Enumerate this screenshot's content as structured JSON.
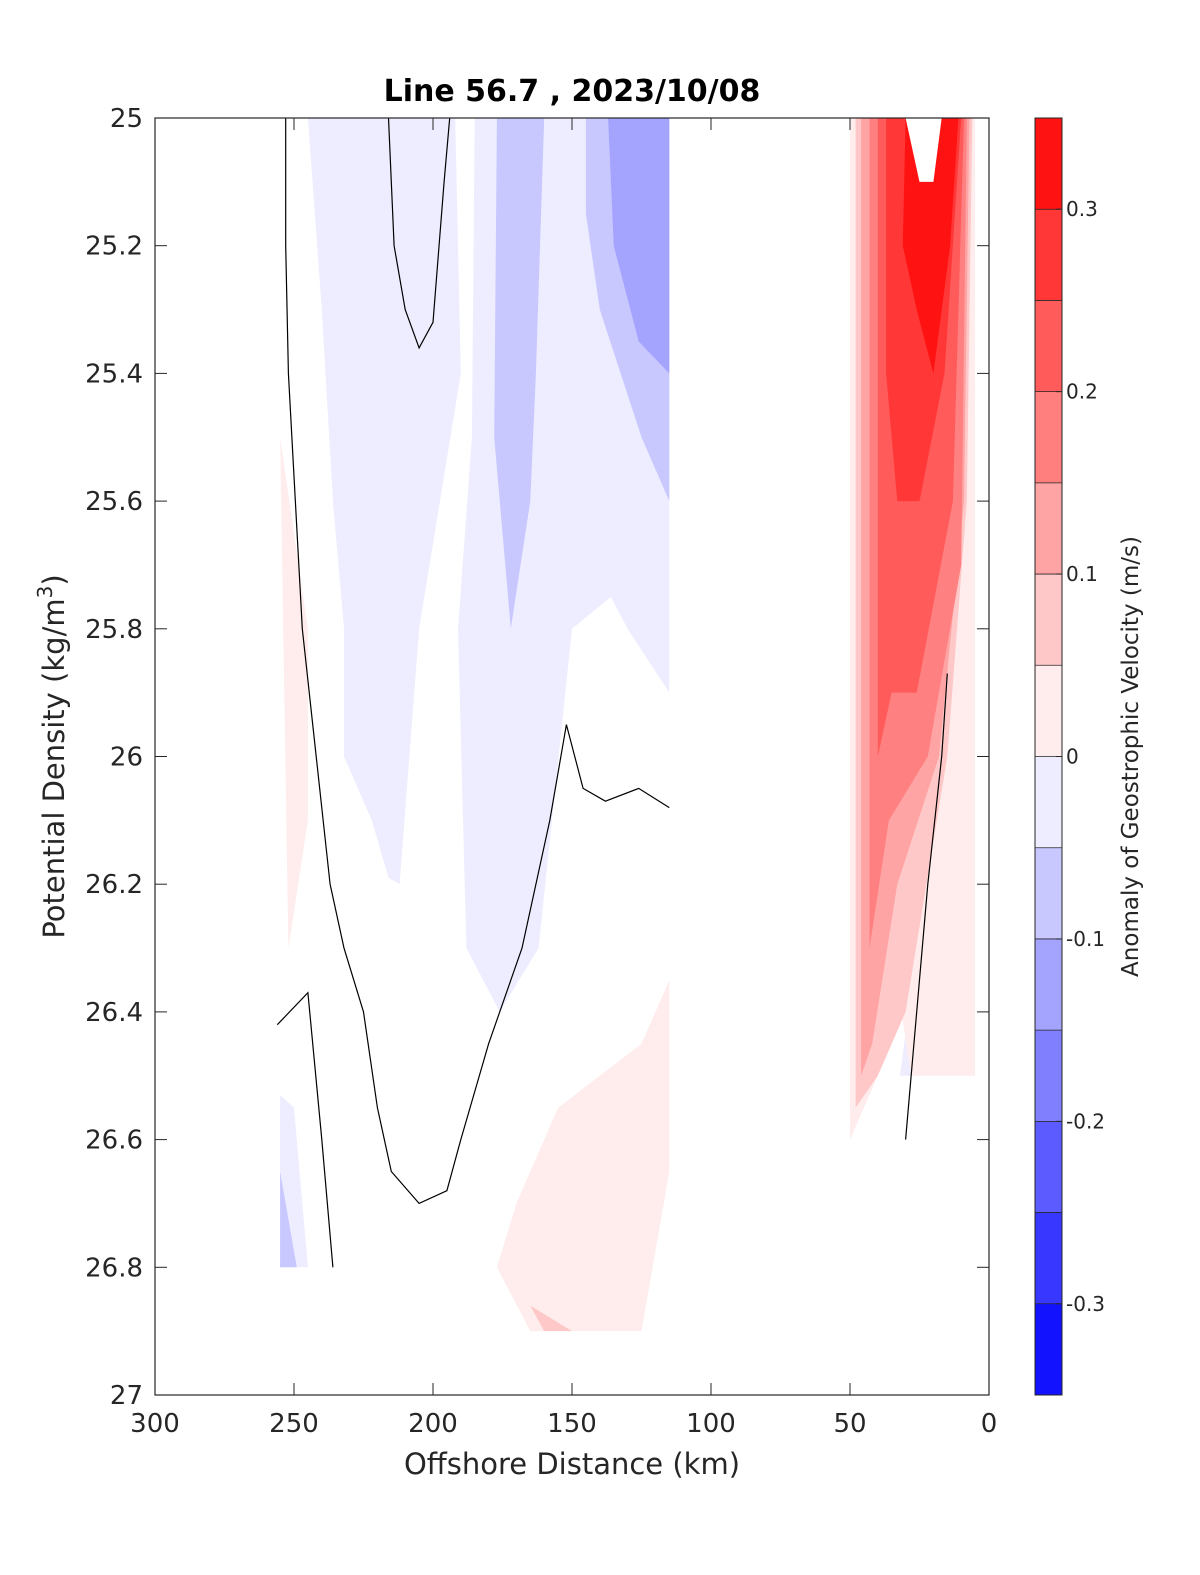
{
  "chart_data": {
    "type": "heatmap",
    "subtype": "filled-contour",
    "title": "Line 56.7 , 2023/10/08",
    "xlabel": "Offshore Distance (km)",
    "ylabel": "Potential Density (kg/m³)",
    "ylabel_base": "Potential Density (kg/m",
    "ylabel_sup": "3",
    "ylabel_end": ")",
    "xlim": [
      300,
      0
    ],
    "x_reversed": true,
    "ylim": [
      27,
      25
    ],
    "y_reversed": true,
    "x_ticks": [
      300,
      250,
      200,
      150,
      100,
      50,
      0
    ],
    "x_tick_labels": [
      "300",
      "250",
      "200",
      "150",
      "100",
      "50",
      "0"
    ],
    "y_ticks": [
      25,
      25.2,
      25.4,
      25.6,
      25.8,
      26,
      26.2,
      26.4,
      26.6,
      26.8,
      27
    ],
    "y_tick_labels": [
      "25",
      "25.2",
      "25.4",
      "25.6",
      "25.8",
      "26",
      "26.2",
      "26.4",
      "26.6",
      "26.8",
      "27"
    ],
    "grid": false,
    "colorbar": {
      "label": "Anomaly of Geostrophic Velocity (m/s)",
      "range": [
        -0.35,
        0.35
      ],
      "step": 0.05,
      "ticks": [
        -0.3,
        -0.2,
        -0.1,
        0,
        0.1,
        0.2,
        0.3
      ],
      "tick_labels": [
        "-0.3",
        "-0.2",
        "-0.1",
        "0",
        "0.1",
        "0.2",
        "0.3"
      ],
      "colormap": "blue-white-red"
    },
    "regions": [
      {
        "name": "offshore-negative-band",
        "level": -0.025,
        "points": [
          [
            245,
            25
          ],
          [
            192,
            25
          ],
          [
            190,
            25.4
          ],
          [
            205,
            25.8
          ],
          [
            212,
            26.2
          ],
          [
            216,
            26.19
          ],
          [
            222,
            26.1
          ],
          [
            232,
            26.0
          ],
          [
            232,
            25.8
          ],
          [
            236,
            25.6
          ],
          [
            240,
            25.3
          ]
        ]
      },
      {
        "name": "mid-negative-band",
        "level": -0.025,
        "points": [
          [
            185,
            25
          ],
          [
            115,
            25
          ],
          [
            115,
            25.9
          ],
          [
            130,
            25.8
          ],
          [
            136,
            25.75
          ],
          [
            150,
            25.8
          ],
          [
            162,
            26.3
          ],
          [
            176,
            26.4
          ],
          [
            188,
            26.3
          ],
          [
            191,
            25.8
          ],
          [
            186,
            25.5
          ]
        ]
      },
      {
        "name": "mid-negative-core",
        "level": -0.075,
        "points": [
          [
            177,
            25
          ],
          [
            160,
            25
          ],
          [
            163,
            25.4
          ],
          [
            165,
            25.6
          ],
          [
            172,
            25.8
          ],
          [
            178,
            25.5
          ]
        ]
      },
      {
        "name": "inshore-negative-patch",
        "level": -0.075,
        "points": [
          [
            145,
            25
          ],
          [
            115,
            25
          ],
          [
            115,
            25.6
          ],
          [
            125,
            25.5
          ],
          [
            140,
            25.3
          ],
          [
            145,
            25.15
          ]
        ]
      },
      {
        "name": "inshore-negative-core",
        "level": -0.125,
        "points": [
          [
            137,
            25
          ],
          [
            115,
            25
          ],
          [
            115,
            25.4
          ],
          [
            126,
            25.35
          ],
          [
            135,
            25.2
          ]
        ]
      },
      {
        "name": "offshore-positive-sliver",
        "level": 0.025,
        "points": [
          [
            255,
            25.5
          ],
          [
            252,
            26.3
          ],
          [
            245,
            26.1
          ],
          [
            245,
            25.8
          ]
        ]
      },
      {
        "name": "deep-positive-patch",
        "level": 0.025,
        "points": [
          [
            115,
            26.35
          ],
          [
            125,
            26.45
          ],
          [
            155,
            26.55
          ],
          [
            170,
            26.7
          ],
          [
            177,
            26.8
          ],
          [
            165,
            26.9
          ],
          [
            125,
            26.9
          ],
          [
            115,
            26.65
          ]
        ]
      },
      {
        "name": "deep-positive-core",
        "level": 0.075,
        "points": [
          [
            165,
            26.86
          ],
          [
            150,
            26.9
          ],
          [
            160,
            26.9
          ]
        ]
      },
      {
        "name": "offshore-deep-negative",
        "level": -0.025,
        "points": [
          [
            255,
            26.53
          ],
          [
            250,
            26.55
          ],
          [
            245,
            26.8
          ],
          [
            255,
            26.8
          ]
        ]
      },
      {
        "name": "offshore-deep-negative-core",
        "level": -0.075,
        "points": [
          [
            255,
            26.65
          ],
          [
            249,
            26.8
          ],
          [
            255,
            26.8
          ]
        ]
      },
      {
        "name": "inshore-deep-negative",
        "level": -0.025,
        "points": [
          [
            25,
            26.5
          ],
          [
            29,
            26.4
          ],
          [
            32,
            26.5
          ]
        ]
      },
      {
        "name": "nearshore-positive-0",
        "level": 0.025,
        "points": [
          [
            50,
            25
          ],
          [
            5,
            25
          ],
          [
            5,
            26.5
          ],
          [
            28,
            26.5
          ],
          [
            35,
            26.3
          ],
          [
            40,
            26.5
          ],
          [
            50,
            26.6
          ]
        ]
      },
      {
        "name": "nearshore-positive-1",
        "level": 0.075,
        "points": [
          [
            48,
            25
          ],
          [
            6,
            25
          ],
          [
            8,
            25.6
          ],
          [
            15,
            26.0
          ],
          [
            30,
            26.4
          ],
          [
            40,
            26.5
          ],
          [
            48,
            26.55
          ]
        ]
      },
      {
        "name": "nearshore-positive-2",
        "level": 0.125,
        "points": [
          [
            46,
            25
          ],
          [
            7,
            25
          ],
          [
            9,
            25.6
          ],
          [
            18,
            26.0
          ],
          [
            33,
            26.2
          ],
          [
            42,
            26.45
          ],
          [
            46,
            26.5
          ]
        ]
      },
      {
        "name": "nearshore-positive-3",
        "level": 0.175,
        "points": [
          [
            43,
            25
          ],
          [
            8,
            25
          ],
          [
            10,
            25.7
          ],
          [
            22,
            26.0
          ],
          [
            36,
            26.1
          ],
          [
            43,
            26.3
          ]
        ]
      },
      {
        "name": "nearshore-positive-4",
        "level": 0.225,
        "points": [
          [
            40,
            25
          ],
          [
            9,
            25
          ],
          [
            13,
            25.6
          ],
          [
            26,
            25.9
          ],
          [
            35,
            25.9
          ],
          [
            40,
            26.0
          ]
        ]
      },
      {
        "name": "nearshore-positive-5",
        "level": 0.275,
        "points": [
          [
            37,
            25
          ],
          [
            10,
            25
          ],
          [
            16,
            25.4
          ],
          [
            25,
            25.6
          ],
          [
            33,
            25.6
          ],
          [
            37,
            25.4
          ]
        ]
      },
      {
        "name": "nearshore-positive-6",
        "level": 0.325,
        "points": [
          [
            30,
            25
          ],
          [
            11,
            25
          ],
          [
            14,
            25.2
          ],
          [
            20,
            25.4
          ],
          [
            26,
            25.3
          ],
          [
            31,
            25.2
          ]
        ]
      }
    ],
    "white_gaps": [
      {
        "name": "nearshore-top-notch",
        "points": [
          [
            30,
            25
          ],
          [
            17,
            25
          ],
          [
            20,
            25.1
          ],
          [
            25,
            25.1
          ]
        ]
      }
    ],
    "zero_contours": [
      {
        "name": "offshore-zero-line",
        "points": [
          [
            253,
            25
          ],
          [
            253,
            25.2
          ],
          [
            252,
            25.4
          ],
          [
            247,
            25.8
          ],
          [
            242,
            26.0
          ],
          [
            237,
            26.2
          ],
          [
            232,
            26.3
          ],
          [
            225,
            26.4
          ],
          [
            220,
            26.55
          ],
          [
            215,
            26.65
          ],
          [
            205,
            26.7
          ],
          [
            195,
            26.68
          ],
          [
            190,
            26.6
          ],
          [
            180,
            26.45
          ],
          [
            168,
            26.3
          ],
          [
            158,
            26.1
          ],
          [
            152,
            25.95
          ],
          [
            146,
            26.05
          ],
          [
            138,
            26.07
          ],
          [
            126,
            26.05
          ],
          [
            115,
            26.08
          ]
        ]
      },
      {
        "name": "upper-loop-line",
        "points": [
          [
            216,
            25
          ],
          [
            214,
            25.2
          ],
          [
            210,
            25.3
          ],
          [
            205,
            25.36
          ],
          [
            200,
            25.32
          ],
          [
            196,
            25.1
          ],
          [
            194,
            25
          ]
        ]
      },
      {
        "name": "offshore-deep-line",
        "points": [
          [
            256,
            26.42
          ],
          [
            245,
            26.37
          ],
          [
            240,
            26.6
          ],
          [
            236,
            26.8
          ]
        ]
      },
      {
        "name": "nearshore-zero-line",
        "points": [
          [
            15,
            25.87
          ],
          [
            17,
            26.0
          ],
          [
            22,
            26.2
          ],
          [
            26,
            26.4
          ],
          [
            30,
            26.6
          ]
        ]
      }
    ]
  }
}
